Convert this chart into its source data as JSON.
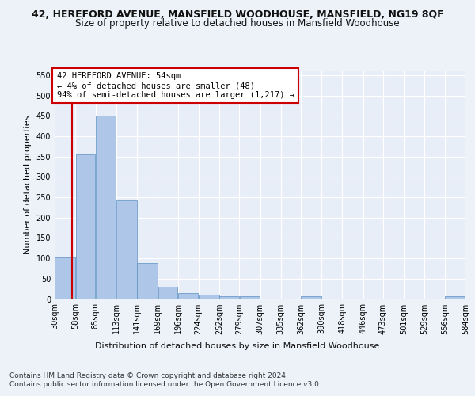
{
  "title_line1": "42, HEREFORD AVENUE, MANSFIELD WOODHOUSE, MANSFIELD, NG19 8QF",
  "title_line2": "Size of property relative to detached houses in Mansfield Woodhouse",
  "xlabel": "Distribution of detached houses by size in Mansfield Woodhouse",
  "ylabel": "Number of detached properties",
  "footer_line1": "Contains HM Land Registry data © Crown copyright and database right 2024.",
  "footer_line2": "Contains public sector information licensed under the Open Government Licence v3.0.",
  "annotation_text": "42 HEREFORD AVENUE: 54sqm\n← 4% of detached houses are smaller (48)\n94% of semi-detached houses are larger (1,217) →",
  "property_size_sqm": 54,
  "bin_edges": [
    30,
    58,
    85,
    113,
    141,
    169,
    196,
    224,
    252,
    279,
    307,
    335,
    362,
    390,
    418,
    446,
    473,
    501,
    529,
    556,
    584
  ],
  "bar_heights": [
    103,
    355,
    450,
    243,
    88,
    30,
    14,
    10,
    6,
    6,
    0,
    0,
    6,
    0,
    0,
    0,
    0,
    0,
    0,
    6
  ],
  "bar_color": "#aec6e8",
  "bar_edgecolor": "#5a8fc2",
  "vline_color": "#cc0000",
  "vline_x": 54,
  "annotation_box_facecolor": "#ffffff",
  "annotation_box_edgecolor": "#cc0000",
  "ylim": [
    0,
    560
  ],
  "yticks": [
    0,
    50,
    100,
    150,
    200,
    250,
    300,
    350,
    400,
    450,
    500,
    550
  ],
  "background_color": "#edf2f9",
  "plot_background": "#e8eef8",
  "grid_color": "#ffffff",
  "title_fontsize": 9,
  "subtitle_fontsize": 8.5,
  "axis_label_fontsize": 8,
  "tick_fontsize": 7,
  "footer_fontsize": 6.5
}
